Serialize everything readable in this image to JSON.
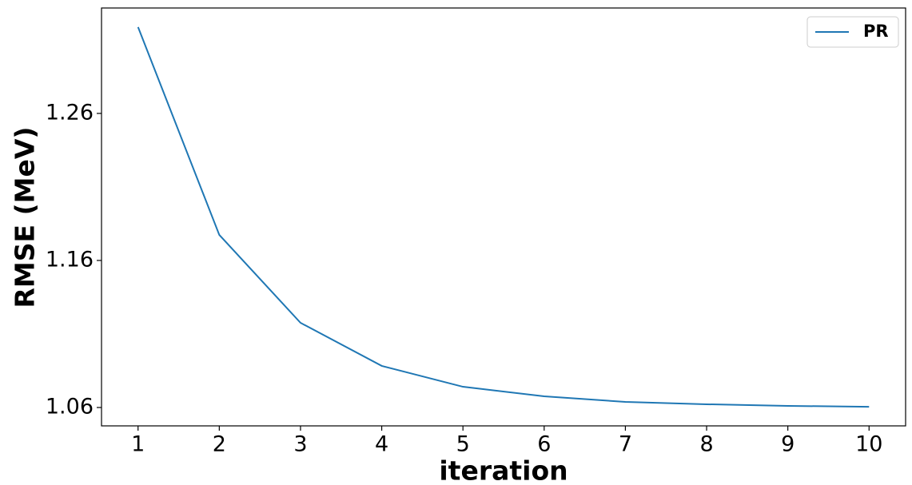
{
  "chart_data": {
    "type": "line",
    "x": [
      1,
      2,
      3,
      4,
      5,
      6,
      7,
      8,
      9,
      10
    ],
    "series": [
      {
        "name": "PR",
        "color": "#1f77b4",
        "values": [
          1.3187,
          1.1774,
          1.1176,
          1.0883,
          1.0741,
          1.0676,
          1.0638,
          1.0622,
          1.0611,
          1.0605
        ]
      }
    ],
    "xlabel": "iteration",
    "ylabel": "RMSE (MeV)",
    "xlim": [
      0.55,
      10.45
    ],
    "xticks": [
      1,
      2,
      3,
      4,
      5,
      6,
      7,
      8,
      9,
      10
    ],
    "ylim": [
      1.0475,
      1.3317
    ],
    "yticks": [
      1.06,
      1.16,
      1.26
    ],
    "grid": false,
    "legend": "upper right"
  }
}
